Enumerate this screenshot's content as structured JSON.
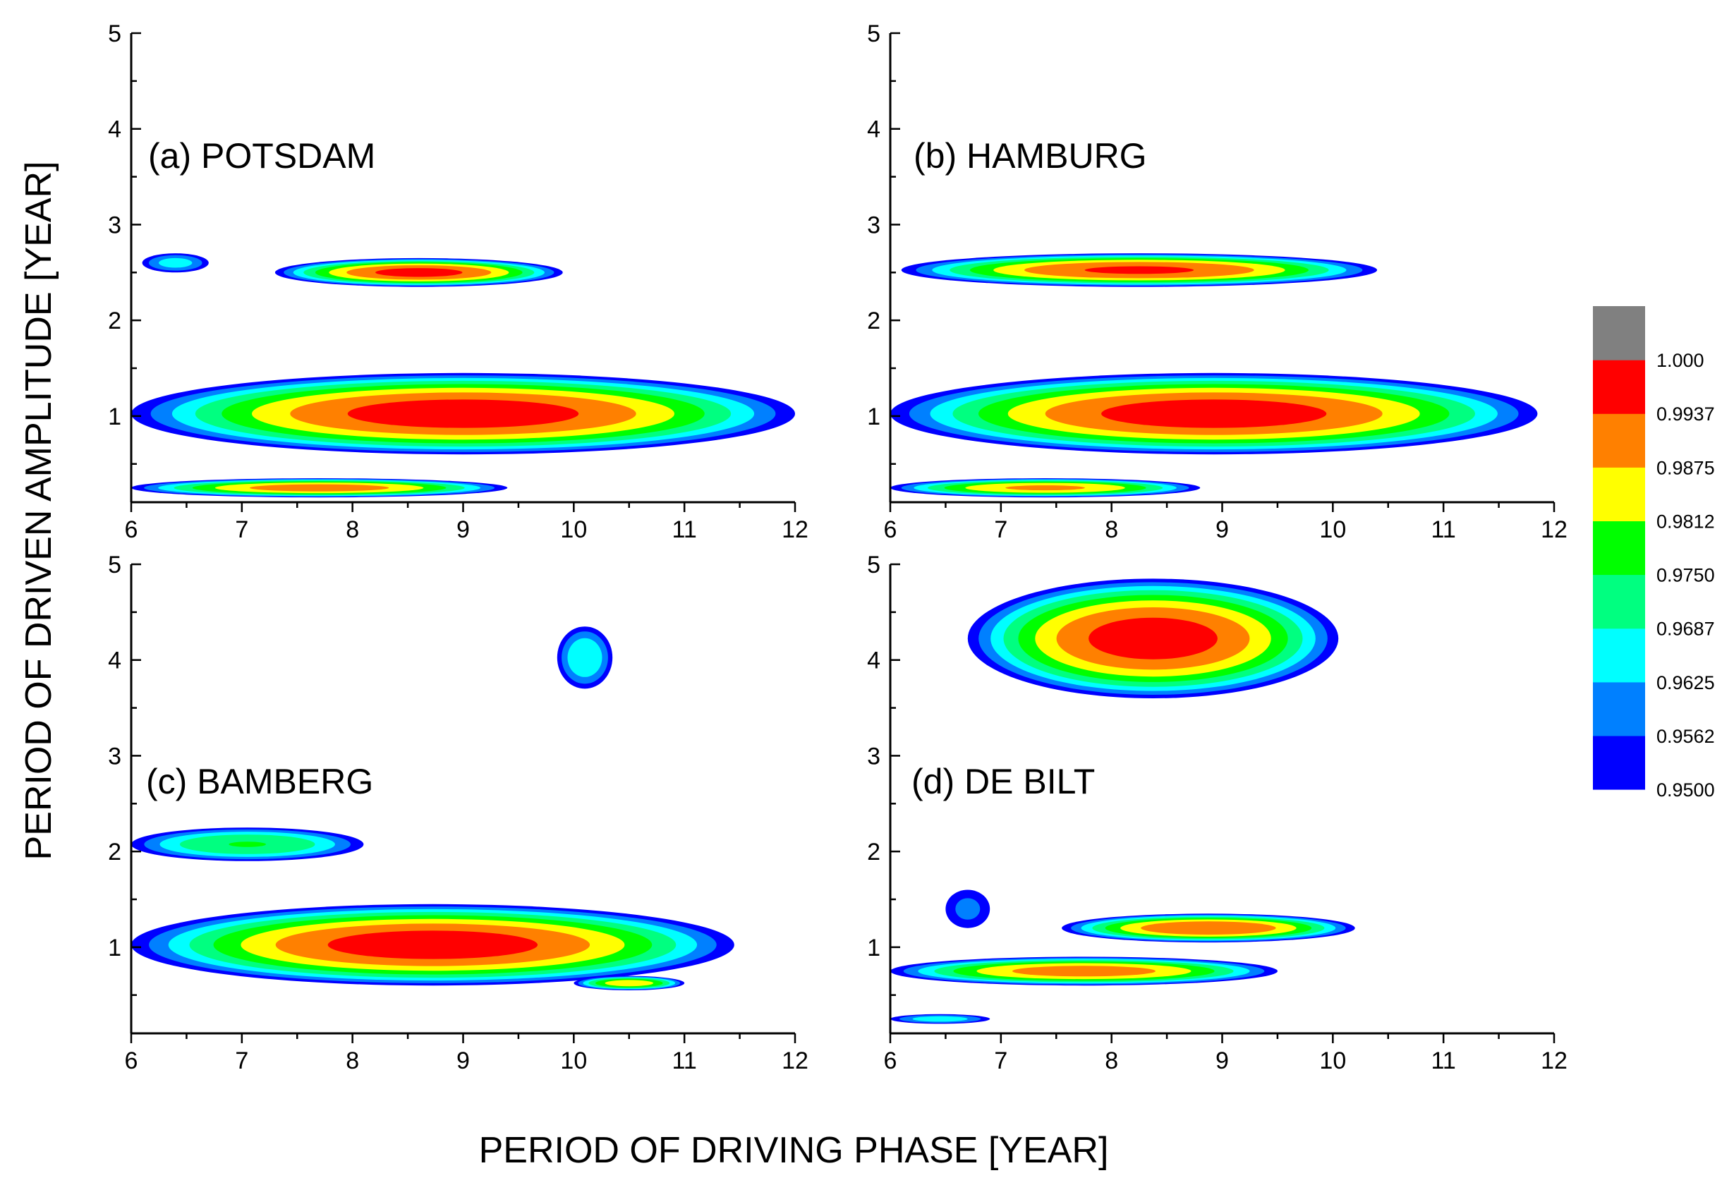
{
  "chart_data": {
    "type": "heatmap",
    "ylabel": "PERIOD OF DRIVEN AMPLITUDE [YEAR]",
    "xlabel": "PERIOD OF DRIVING PHASE [YEAR]",
    "xlim": [
      6,
      12
    ],
    "ylim": [
      0.1,
      5
    ],
    "xticks": [
      "6",
      "7",
      "8",
      "9",
      "10",
      "11",
      "12"
    ],
    "yticks": [
      "1",
      "2",
      "3",
      "4",
      "5"
    ],
    "colorbar": {
      "levels": [
        {
          "label": "0.9500",
          "color": "#0000ff"
        },
        {
          "label": "0.9562",
          "color": "#0080ff"
        },
        {
          "label": "0.9625",
          "color": "#00ffff"
        },
        {
          "label": "0.9687",
          "color": "#00ff80"
        },
        {
          "label": "0.9750",
          "color": "#00ff00"
        },
        {
          "label": "0.9812",
          "color": "#ffff00"
        },
        {
          "label": "0.9875",
          "color": "#ff8000"
        },
        {
          "label": "0.9937",
          "color": "#ff0000"
        },
        {
          "label": "1.000",
          "color": "#808080"
        }
      ]
    },
    "panels": [
      {
        "title": "(a) POTSDAM",
        "regions": [
          {
            "x0": 6.1,
            "x1": 6.7,
            "y0": 2.5,
            "y1": 2.7,
            "peak": 0.965
          },
          {
            "x0": 7.3,
            "x1": 9.9,
            "y0": 2.35,
            "y1": 2.65,
            "peak": 0.995
          },
          {
            "x0": 6.0,
            "x1": 12.0,
            "y0": 0.6,
            "y1": 1.45,
            "peak": 0.996
          },
          {
            "x0": 6.0,
            "x1": 9.4,
            "y0": 0.15,
            "y1": 0.35,
            "peak": 0.99
          }
        ]
      },
      {
        "title": "(b) HAMBURG",
        "regions": [
          {
            "x0": 6.1,
            "x1": 10.4,
            "y0": 2.35,
            "y1": 2.7,
            "peak": 0.994
          },
          {
            "x0": 6.0,
            "x1": 11.85,
            "y0": 0.6,
            "y1": 1.45,
            "peak": 0.996
          },
          {
            "x0": 6.0,
            "x1": 8.8,
            "y0": 0.15,
            "y1": 0.35,
            "peak": 0.988
          }
        ]
      },
      {
        "title": "(c) BAMBERG",
        "regions": [
          {
            "x0": 6.0,
            "x1": 8.1,
            "y0": 1.9,
            "y1": 2.25,
            "peak": 0.975
          },
          {
            "x0": 9.85,
            "x1": 10.35,
            "y0": 3.7,
            "y1": 4.35,
            "peak": 0.968
          },
          {
            "x0": 6.0,
            "x1": 11.45,
            "y0": 0.6,
            "y1": 1.45,
            "peak": 0.996
          },
          {
            "x0": 10.0,
            "x1": 11.0,
            "y0": 0.55,
            "y1": 0.7,
            "peak": 0.985
          }
        ]
      },
      {
        "title": "(d) DE BILT",
        "regions": [
          {
            "x0": 6.7,
            "x1": 10.05,
            "y0": 3.6,
            "y1": 4.85,
            "peak": 0.996
          },
          {
            "x0": 6.5,
            "x1": 6.9,
            "y0": 1.2,
            "y1": 1.6,
            "peak": 0.958
          },
          {
            "x0": 7.55,
            "x1": 10.2,
            "y0": 1.05,
            "y1": 1.35,
            "peak": 0.993
          },
          {
            "x0": 6.0,
            "x1": 9.5,
            "y0": 0.6,
            "y1": 0.9,
            "peak": 0.99
          },
          {
            "x0": 6.0,
            "x1": 6.9,
            "y0": 0.2,
            "y1": 0.3,
            "peak": 0.966
          }
        ]
      }
    ]
  }
}
